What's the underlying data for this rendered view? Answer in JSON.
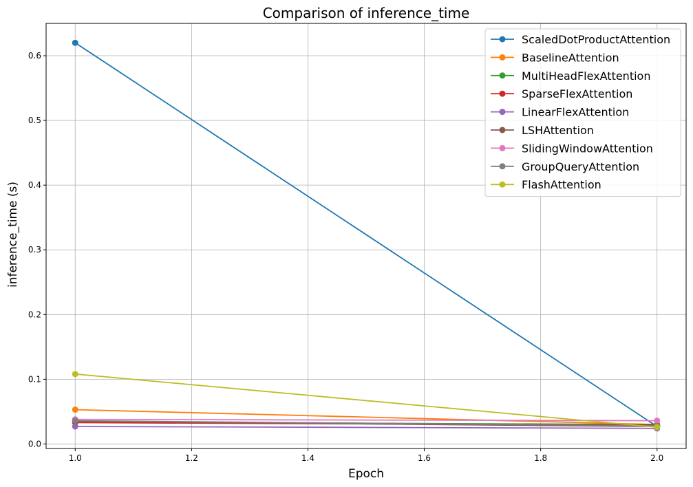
{
  "chart_data": {
    "type": "line",
    "title": "Comparison of inference_time",
    "xlabel": "Epoch",
    "ylabel": "inference_time (s)",
    "x": [
      1.0,
      2.0
    ],
    "xlim": [
      0.95,
      2.05
    ],
    "ylim": [
      -0.007,
      0.65
    ],
    "xticks": [
      "1.0",
      "1.2",
      "1.4",
      "1.6",
      "1.8",
      "2.0"
    ],
    "yticks": [
      "0.0",
      "0.1",
      "0.2",
      "0.3",
      "0.4",
      "0.5",
      "0.6"
    ],
    "grid": true,
    "legend_position": "top-right",
    "series": [
      {
        "name": "ScaledDotProductAttention",
        "color": "#1f77b4",
        "values": [
          0.62,
          0.027
        ]
      },
      {
        "name": "BaselineAttention",
        "color": "#ff7f0e",
        "values": [
          0.053,
          0.03
        ]
      },
      {
        "name": "MultiHeadFlexAttention",
        "color": "#2ca02c",
        "values": [
          0.034,
          0.03
        ]
      },
      {
        "name": "SparseFlexAttention",
        "color": "#d62728",
        "values": [
          0.033,
          0.029
        ]
      },
      {
        "name": "LinearFlexAttention",
        "color": "#9467bd",
        "values": [
          0.027,
          0.024
        ]
      },
      {
        "name": "LSHAttention",
        "color": "#8c564b",
        "values": [
          0.035,
          0.027
        ]
      },
      {
        "name": "SlidingWindowAttention",
        "color": "#e377c2",
        "values": [
          0.038,
          0.036
        ]
      },
      {
        "name": "GroupQueryAttention",
        "color": "#7f7f7f",
        "values": [
          0.036,
          0.028
        ]
      },
      {
        "name": "FlashAttention",
        "color": "#bcbd22",
        "values": [
          0.108,
          0.026
        ]
      }
    ]
  }
}
